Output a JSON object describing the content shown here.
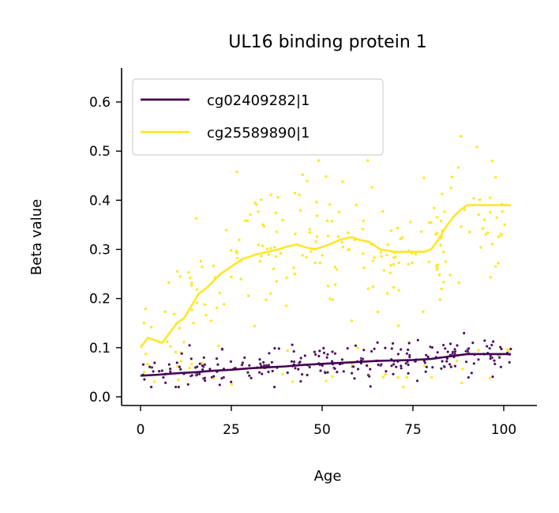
{
  "chart_data": {
    "type": "scatter",
    "title": "UL16 binding protein 1",
    "xlabel": "Age",
    "ylabel": "Beta value",
    "xlim": [
      -5,
      108
    ],
    "ylim": [
      -0.015,
      0.67
    ],
    "xticks": [
      0,
      25,
      50,
      75,
      100
    ],
    "yticks": [
      0.0,
      0.1,
      0.2,
      0.3,
      0.4,
      0.5,
      0.6
    ],
    "xtick_labels": [
      "0",
      "25",
      "50",
      "75",
      "100"
    ],
    "ytick_labels": [
      "0.0",
      "0.1",
      "0.2",
      "0.3",
      "0.4",
      "0.5",
      "0.6"
    ],
    "grid": false,
    "legend_position": "top-left",
    "series": [
      {
        "name": "cg02409282|1",
        "color": "#440154",
        "trend": [
          [
            0,
            0.043
          ],
          [
            5,
            0.045
          ],
          [
            10,
            0.048
          ],
          [
            15,
            0.05
          ],
          [
            20,
            0.053
          ],
          [
            25,
            0.055
          ],
          [
            30,
            0.058
          ],
          [
            35,
            0.06
          ],
          [
            40,
            0.062
          ],
          [
            45,
            0.065
          ],
          [
            50,
            0.067
          ],
          [
            55,
            0.069
          ],
          [
            60,
            0.071
          ],
          [
            65,
            0.073
          ],
          [
            70,
            0.074
          ],
          [
            75,
            0.075
          ],
          [
            80,
            0.077
          ],
          [
            85,
            0.082
          ],
          [
            90,
            0.087
          ],
          [
            95,
            0.087
          ],
          [
            102,
            0.087
          ]
        ],
        "points_summary": {
          "count": 260,
          "x_range": [
            0,
            102
          ],
          "y_range": [
            0.02,
            0.16
          ]
        }
      },
      {
        "name": "cg25589890|1",
        "color": "#fde725",
        "trend": [
          [
            0,
            0.1
          ],
          [
            2,
            0.12
          ],
          [
            4,
            0.115
          ],
          [
            6,
            0.11
          ],
          [
            8,
            0.13
          ],
          [
            10,
            0.15
          ],
          [
            12,
            0.16
          ],
          [
            14,
            0.185
          ],
          [
            16,
            0.21
          ],
          [
            18,
            0.22
          ],
          [
            20,
            0.235
          ],
          [
            22,
            0.25
          ],
          [
            24,
            0.26
          ],
          [
            26,
            0.27
          ],
          [
            28,
            0.28
          ],
          [
            30,
            0.285
          ],
          [
            32,
            0.29
          ],
          [
            35,
            0.295
          ],
          [
            38,
            0.3
          ],
          [
            40,
            0.305
          ],
          [
            43,
            0.31
          ],
          [
            45,
            0.305
          ],
          [
            48,
            0.3
          ],
          [
            50,
            0.305
          ],
          [
            52,
            0.31
          ],
          [
            55,
            0.32
          ],
          [
            58,
            0.325
          ],
          [
            60,
            0.32
          ],
          [
            63,
            0.315
          ],
          [
            66,
            0.3
          ],
          [
            70,
            0.295
          ],
          [
            74,
            0.295
          ],
          [
            78,
            0.295
          ],
          [
            80,
            0.3
          ],
          [
            82,
            0.32
          ],
          [
            84,
            0.345
          ],
          [
            86,
            0.365
          ],
          [
            88,
            0.38
          ],
          [
            90,
            0.39
          ],
          [
            95,
            0.39
          ],
          [
            102,
            0.39
          ]
        ],
        "points_summary": {
          "count": 260,
          "x_range": [
            0,
            102
          ],
          "y_range": [
            0.01,
            0.53
          ]
        }
      }
    ]
  }
}
